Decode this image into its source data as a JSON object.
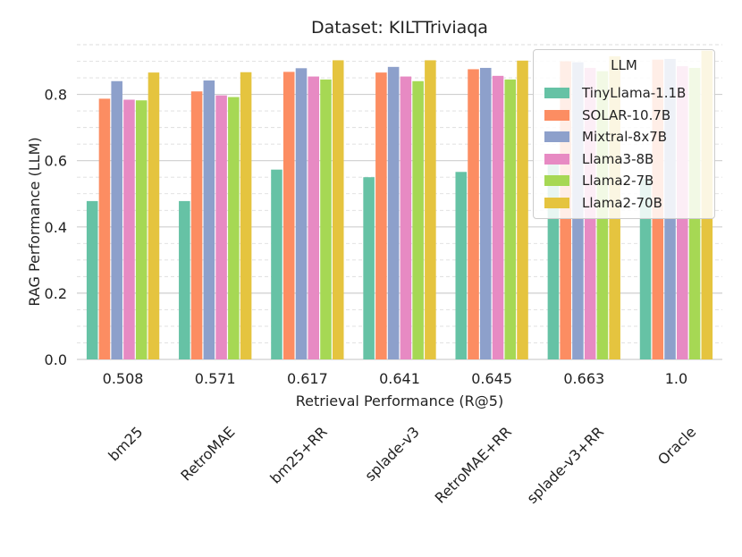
{
  "chart_data": {
    "type": "bar",
    "title": "Dataset: KILTTriviaqa",
    "xlabel": "Retrieval Performance (R@5)",
    "ylabel": "RAG Performance (LLM)",
    "ylim": [
      0,
      0.95
    ],
    "yticks": [
      0.0,
      0.2,
      0.4,
      0.6,
      0.8
    ],
    "ytick_labels": [
      "0.0",
      "0.2",
      "0.4",
      "0.6",
      "0.8"
    ],
    "grid": true,
    "categories": [
      "0.508",
      "0.571",
      "0.617",
      "0.641",
      "0.645",
      "0.663",
      "1.0"
    ],
    "retrievers": [
      "bm25",
      "RetroMAE",
      "bm25+RR",
      "splade-v3",
      "RetroMAE+RR",
      "splade-v3+RR",
      "Oracle"
    ],
    "legend_title": "LLM",
    "legend_position": "top-right",
    "series": [
      {
        "name": "TinyLlama-1.1B",
        "color": "#66c2a5",
        "values": [
          0.478,
          0.478,
          0.573,
          0.55,
          0.566,
          0.605,
          0.545
        ]
      },
      {
        "name": "SOLAR-10.7B",
        "color": "#fc8d62",
        "values": [
          0.787,
          0.809,
          0.868,
          0.866,
          0.876,
          0.9,
          0.905
        ]
      },
      {
        "name": "Mixtral-8x7B",
        "color": "#8da0cb",
        "values": [
          0.84,
          0.842,
          0.879,
          0.883,
          0.88,
          0.897,
          0.907
        ]
      },
      {
        "name": "Llama3-8B",
        "color": "#e78ac3",
        "values": [
          0.784,
          0.797,
          0.854,
          0.854,
          0.856,
          0.88,
          0.885
        ]
      },
      {
        "name": "Llama2-7B",
        "color": "#a6d854",
        "values": [
          0.782,
          0.792,
          0.845,
          0.84,
          0.845,
          0.87,
          0.88
        ]
      },
      {
        "name": "Llama2-70B",
        "color": "#e5c43f",
        "values": [
          0.866,
          0.867,
          0.903,
          0.903,
          0.902,
          0.915,
          0.932
        ]
      }
    ]
  }
}
